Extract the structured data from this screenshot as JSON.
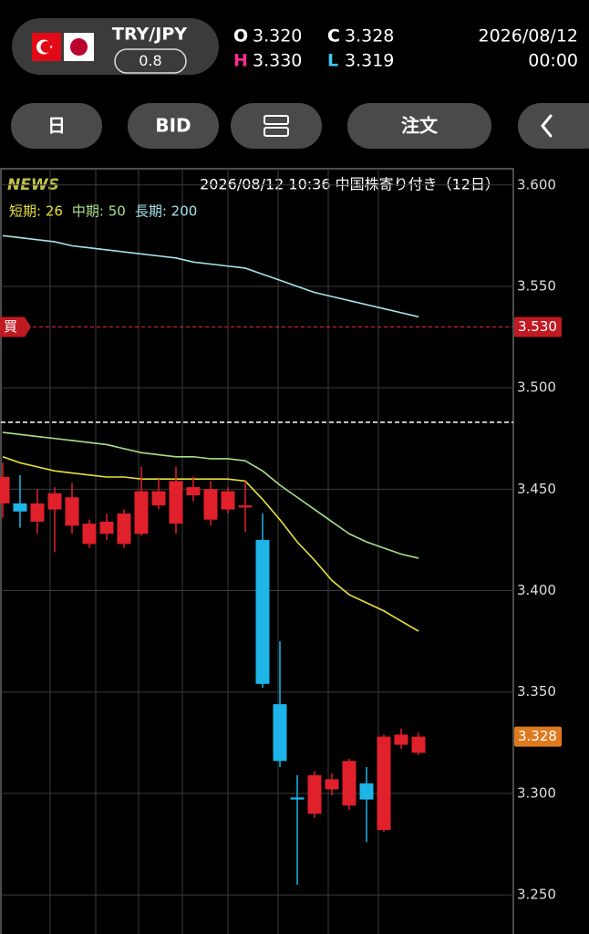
{
  "header": {
    "pair": "TRY/JPY",
    "spread": "0.8",
    "open_label": "O",
    "open": "3.320",
    "close_label": "C",
    "close": "3.328",
    "high_label": "H",
    "high": "3.330",
    "low_label": "L",
    "low": "3.319",
    "date": "2026/08/12",
    "time": "00:00"
  },
  "toolbar": {
    "period": "日",
    "side": "BID",
    "order": "注文"
  },
  "chart_data": {
    "type": "candlestick",
    "news_label": "NEWS",
    "news": "2026/08/12 10:36 中国株寄り付き（12日）",
    "ylim": [
      3.228,
      3.608
    ],
    "yticks": [
      {
        "value": 3.6,
        "label": "3.600"
      },
      {
        "value": 3.55,
        "label": "3.550"
      },
      {
        "value": 3.5,
        "label": "3.500"
      },
      {
        "value": 3.45,
        "label": "3.450"
      },
      {
        "value": 3.4,
        "label": "3.400"
      },
      {
        "value": 3.35,
        "label": "3.350"
      },
      {
        "value": 3.3,
        "label": "3.300"
      },
      {
        "value": 3.25,
        "label": "3.250"
      }
    ],
    "grid": true,
    "up_color": "#e0202a",
    "down_color": "#1eb4e8",
    "open": [
      3.443,
      3.443,
      3.434,
      3.44,
      3.432,
      3.423,
      3.428,
      3.423,
      3.428,
      3.442,
      3.433,
      3.447,
      3.435,
      3.44,
      3.441,
      3.425,
      3.344,
      3.298,
      3.29,
      3.302,
      3.294,
      3.305,
      3.282,
      3.324,
      3.32
    ],
    "high": [
      3.463,
      3.457,
      3.45,
      3.451,
      3.453,
      3.435,
      3.438,
      3.44,
      3.461,
      3.455,
      3.461,
      3.456,
      3.454,
      3.451,
      3.454,
      3.438,
      3.375,
      3.309,
      3.311,
      3.31,
      3.317,
      3.313,
      3.329,
      3.332,
      3.33
    ],
    "low": [
      3.436,
      3.431,
      3.428,
      3.419,
      3.428,
      3.421,
      3.425,
      3.421,
      3.427,
      3.44,
      3.428,
      3.444,
      3.432,
      3.438,
      3.429,
      3.352,
      3.313,
      3.255,
      3.288,
      3.299,
      3.292,
      3.276,
      3.281,
      3.322,
      3.319
    ],
    "close": [
      3.456,
      3.439,
      3.443,
      3.448,
      3.446,
      3.433,
      3.434,
      3.438,
      3.449,
      3.449,
      3.454,
      3.451,
      3.45,
      3.449,
      3.442,
      3.354,
      3.316,
      3.297,
      3.309,
      3.307,
      3.316,
      3.297,
      3.328,
      3.329,
      3.328
    ],
    "series": [
      {
        "name": "短期: 26",
        "color": "#e8e03a",
        "values": [
          3.466,
          3.463,
          3.461,
          3.459,
          3.458,
          3.457,
          3.456,
          3.456,
          3.455,
          3.455,
          3.455,
          3.455,
          3.455,
          3.455,
          3.454,
          3.445,
          3.435,
          3.424,
          3.415,
          3.405,
          3.398,
          3.394,
          3.39,
          3.385,
          3.38
        ]
      },
      {
        "name": "中期: 50",
        "color": "#a8e08a",
        "values": [
          3.478,
          3.477,
          3.476,
          3.475,
          3.474,
          3.473,
          3.472,
          3.47,
          3.468,
          3.467,
          3.466,
          3.466,
          3.465,
          3.465,
          3.464,
          3.459,
          3.452,
          3.446,
          3.44,
          3.434,
          3.428,
          3.424,
          3.421,
          3.418,
          3.416
        ]
      },
      {
        "name": "長期: 200",
        "color": "#a6e4ec",
        "values": [
          3.575,
          3.574,
          3.573,
          3.572,
          3.57,
          3.569,
          3.568,
          3.567,
          3.566,
          3.565,
          3.564,
          3.562,
          3.561,
          3.56,
          3.559,
          3.556,
          3.553,
          3.55,
          3.547,
          3.545,
          3.543,
          3.541,
          3.539,
          3.537,
          3.535
        ]
      }
    ],
    "ask_line": 3.483,
    "buy_line": {
      "label": "買",
      "value": 3.53,
      "value_label": "3.530"
    },
    "last_price": {
      "value": 3.328,
      "value_label": "3.328"
    }
  }
}
